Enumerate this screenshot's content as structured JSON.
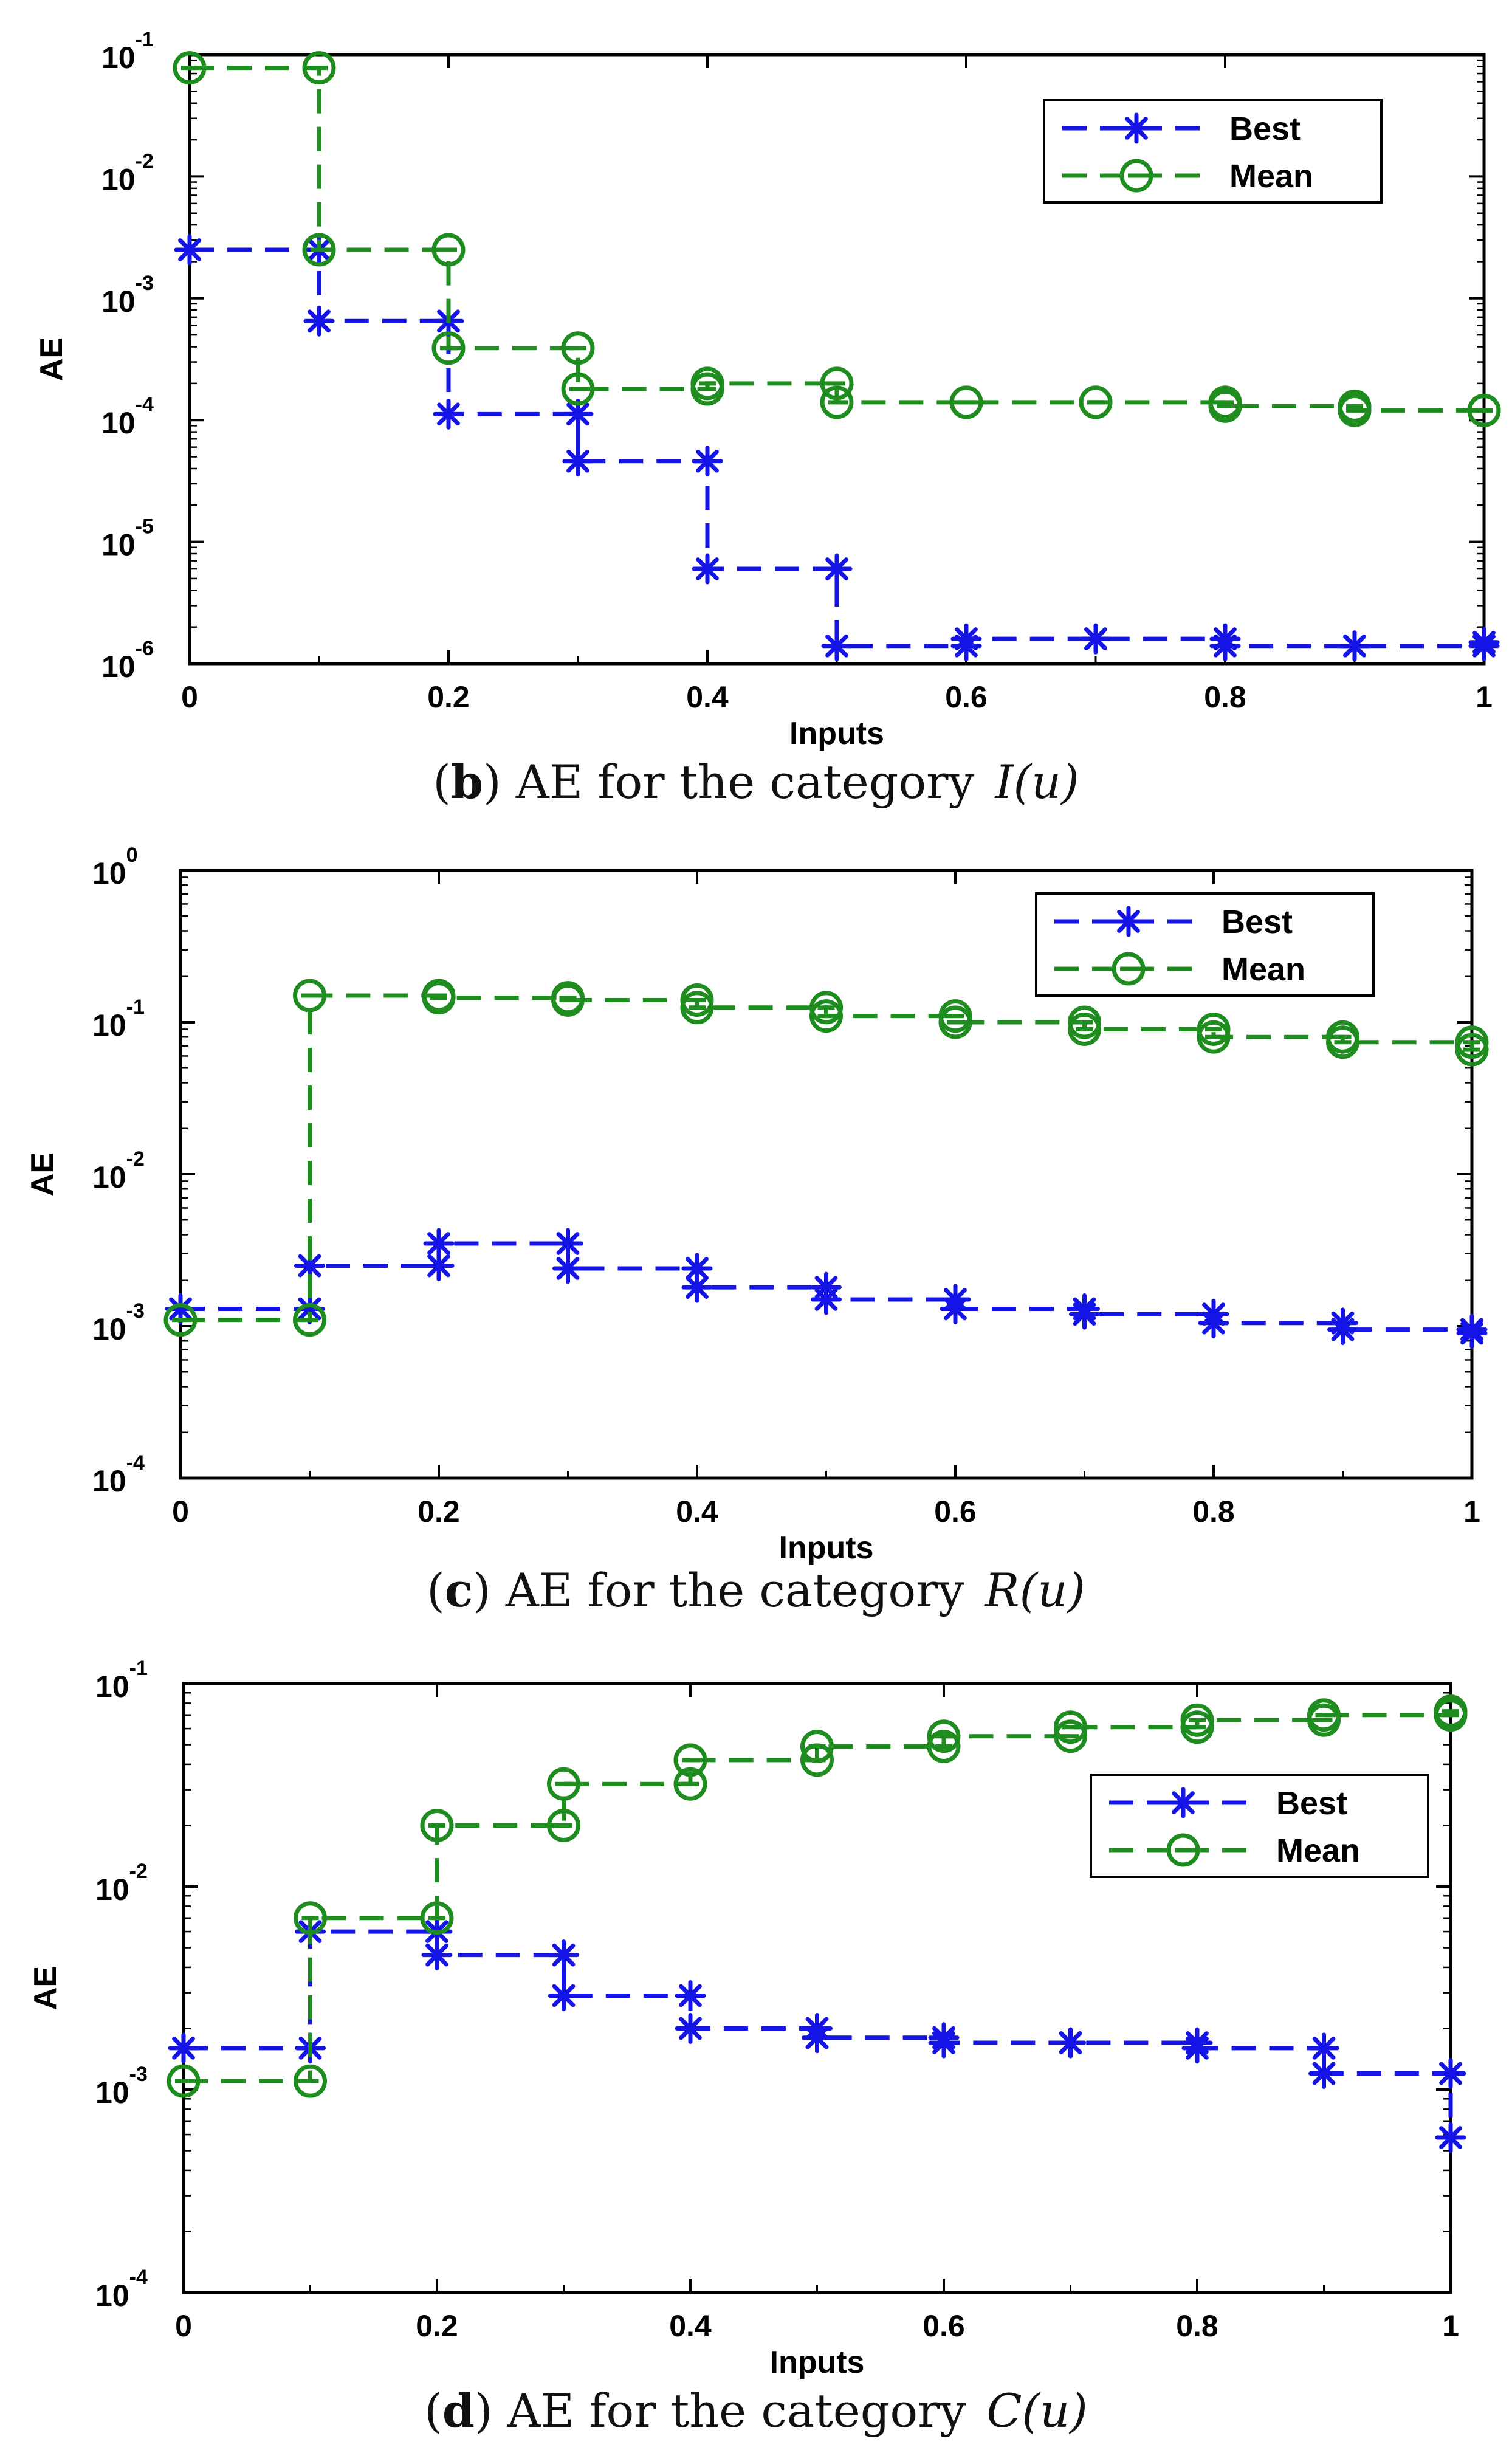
{
  "colors": {
    "best": "#1414e6",
    "mean": "#1e8c1e",
    "axis": "#000000"
  },
  "panels": [
    {
      "caption": {
        "letter": "b",
        "text": "AE for the category",
        "math": "I(u)"
      },
      "chart_data": {
        "type": "line",
        "xlabel": "Inputs",
        "ylabel": "AE",
        "xlim": [
          0,
          1
        ],
        "ylim": [
          1e-06,
          0.1
        ],
        "yscale": "log",
        "x_ticks": [
          "0",
          "0.2",
          "0.4",
          "0.6",
          "0.8",
          "1"
        ],
        "y_ticks": [
          {
            "base": "10",
            "exp": "-6"
          },
          {
            "base": "10",
            "exp": "-5"
          },
          {
            "base": "10",
            "exp": "-4"
          },
          {
            "base": "10",
            "exp": "-3"
          },
          {
            "base": "10",
            "exp": "-2"
          },
          {
            "base": "10",
            "exp": "-1"
          }
        ],
        "legend": {
          "location": "top-right",
          "entries": [
            "Best",
            "Mean"
          ]
        },
        "series": [
          {
            "name": "Best",
            "x": [
              0,
              0.1,
              0.2,
              0.3,
              0.4,
              0.5,
              0.6,
              0.7,
              0.8,
              0.9,
              1.0
            ],
            "values": [
              0.0025,
              0.00065,
              0.000112,
              4.6e-05,
              6e-06,
              1.4e-06,
              1.6e-06,
              1.6e-06,
              1.4e-06,
              1.4e-06,
              1.5e-06
            ]
          },
          {
            "name": "Mean",
            "x": [
              0,
              0.1,
              0.2,
              0.3,
              0.4,
              0.5,
              0.6,
              0.7,
              0.8,
              0.9,
              1.0
            ],
            "values": [
              0.078,
              0.0025,
              0.00039,
              0.00018,
              0.0002,
              0.00014,
              0.00014,
              0.00014,
              0.00013,
              0.00012,
              0.00012
            ]
          }
        ]
      }
    },
    {
      "caption": {
        "letter": "c",
        "text": "AE for the category",
        "math": "R(u)"
      },
      "chart_data": {
        "type": "line",
        "xlabel": "Inputs",
        "ylabel": "AE",
        "xlim": [
          0,
          1
        ],
        "ylim": [
          0.0001,
          1
        ],
        "yscale": "log",
        "x_ticks": [
          "0",
          "0.2",
          "0.4",
          "0.6",
          "0.8",
          "1"
        ],
        "y_ticks": [
          {
            "base": "10",
            "exp": "-4"
          },
          {
            "base": "10",
            "exp": "-3"
          },
          {
            "base": "10",
            "exp": "-2"
          },
          {
            "base": "10",
            "exp": "-1"
          },
          {
            "base": "10",
            "exp": "0"
          }
        ],
        "legend": {
          "location": "top-right",
          "entries": [
            "Best",
            "Mean"
          ]
        },
        "series": [
          {
            "name": "Best",
            "x": [
              0,
              0.1,
              0.2,
              0.3,
              0.4,
              0.5,
              0.6,
              0.7,
              0.8,
              0.9,
              1.0
            ],
            "values": [
              0.0013,
              0.0025,
              0.0035,
              0.0024,
              0.0018,
              0.0015,
              0.0013,
              0.0012,
              0.00105,
              0.00095,
              0.0009
            ]
          },
          {
            "name": "Mean",
            "x": [
              0,
              0.1,
              0.2,
              0.3,
              0.4,
              0.5,
              0.6,
              0.7,
              0.8,
              0.9,
              1.0
            ],
            "values": [
              0.0011,
              0.15,
              0.145,
              0.14,
              0.125,
              0.11,
              0.1,
              0.09,
              0.08,
              0.074,
              0.066
            ]
          }
        ]
      }
    },
    {
      "caption": {
        "letter": "d",
        "text": "AE for the category",
        "math": "C(u)"
      },
      "chart_data": {
        "type": "line",
        "xlabel": "Inputs",
        "ylabel": "AE",
        "xlim": [
          0,
          1
        ],
        "ylim": [
          0.0001,
          0.1
        ],
        "yscale": "log",
        "x_ticks": [
          "0",
          "0.2",
          "0.4",
          "0.6",
          "0.8",
          "1"
        ],
        "y_ticks": [
          {
            "base": "10",
            "exp": "-4"
          },
          {
            "base": "10",
            "exp": "-3"
          },
          {
            "base": "10",
            "exp": "-2"
          },
          {
            "base": "10",
            "exp": "-1"
          }
        ],
        "legend": {
          "location": "upper-right",
          "entries": [
            "Best",
            "Mean"
          ]
        },
        "series": [
          {
            "name": "Best",
            "x": [
              0,
              0.1,
              0.2,
              0.3,
              0.4,
              0.5,
              0.6,
              0.7,
              0.8,
              0.9,
              1.0
            ],
            "values": [
              0.0016,
              0.006,
              0.0046,
              0.0029,
              0.002,
              0.0018,
              0.0017,
              0.0017,
              0.0016,
              0.0012,
              0.00058
            ]
          },
          {
            "name": "Mean",
            "x": [
              0,
              0.1,
              0.2,
              0.3,
              0.4,
              0.5,
              0.6,
              0.7,
              0.8,
              0.9,
              1.0
            ],
            "values": [
              0.0011,
              0.007,
              0.02,
              0.032,
              0.042,
              0.049,
              0.055,
              0.061,
              0.066,
              0.07,
              0.073
            ]
          }
        ]
      }
    }
  ]
}
